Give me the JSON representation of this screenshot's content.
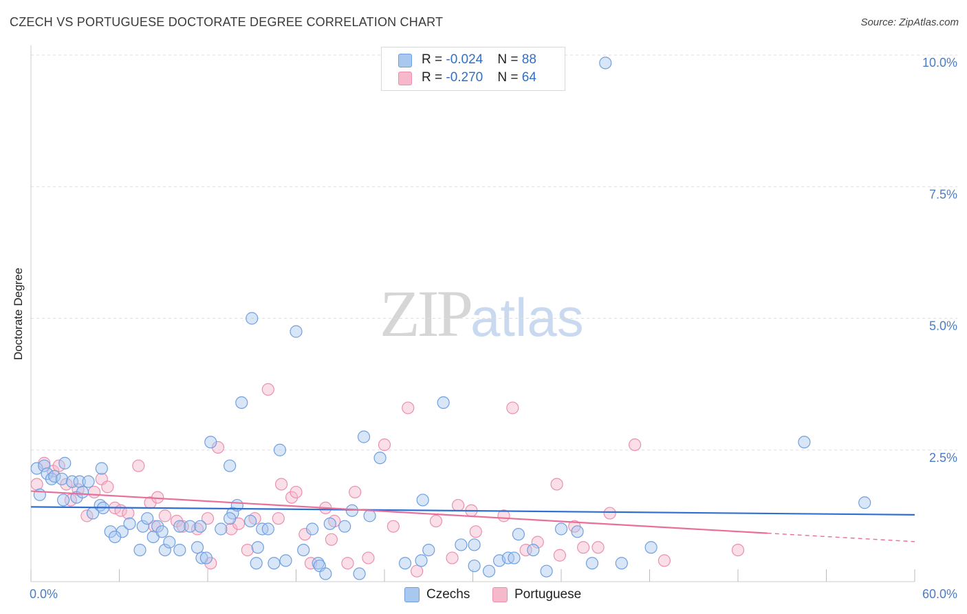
{
  "header": {
    "title": "CZECH VS PORTUGUESE DOCTORATE DEGREE CORRELATION CHART",
    "source": "Source: ZipAtlas.com"
  },
  "watermark": {
    "zip": "ZIP",
    "atlas": "atlas"
  },
  "legend": {
    "rows": [
      {
        "r_label": "R = ",
        "r_value": "-0.024",
        "n_label": "N = ",
        "n_value": "88",
        "color": "#a9c8f0"
      },
      {
        "r_label": "R = ",
        "r_value": "-0.270",
        "n_label": "N = ",
        "n_value": "64",
        "color": "#f6b8cb"
      }
    ]
  },
  "bottom_legend": {
    "czechs": "Czechs",
    "portuguese": "Portuguese"
  },
  "colors": {
    "blue_fill": "#a9c8f0",
    "blue_stroke": "#6f9fe0",
    "blue_line": "#2f6fd0",
    "pink_fill": "#f6b8cb",
    "pink_stroke": "#ec8fad",
    "pink_line": "#e86f9a",
    "grid": "#dddddd",
    "tick_text": "#4a7cc4"
  },
  "chart_data": {
    "type": "scatter",
    "title": "CZECH VS PORTUGUESE DOCTORATE DEGREE CORRELATION CHART",
    "xlabel": "",
    "ylabel": "Doctorate Degree",
    "xlim": [
      0,
      60
    ],
    "ylim": [
      0,
      10
    ],
    "x_tick_labels": [
      "0.0%",
      "60.0%"
    ],
    "y_ticks": [
      2.5,
      5.0,
      7.5,
      10.0
    ],
    "y_tick_labels": [
      "2.5%",
      "5.0%",
      "7.5%",
      "10.0%"
    ],
    "grid": true,
    "series": [
      {
        "name": "Czechs",
        "r": -0.024,
        "n": 88,
        "trend": {
          "x": [
            0,
            60
          ],
          "y": [
            1.42,
            1.27
          ],
          "extend_dashed_to": null
        },
        "points": [
          [
            0.4,
            2.15
          ],
          [
            0.6,
            1.65
          ],
          [
            0.9,
            2.2
          ],
          [
            1.1,
            2.05
          ],
          [
            1.4,
            1.95
          ],
          [
            1.6,
            2.0
          ],
          [
            2.1,
            1.95
          ],
          [
            2.3,
            2.25
          ],
          [
            2.2,
            1.55
          ],
          [
            2.8,
            1.9
          ],
          [
            3.3,
            1.9
          ],
          [
            3.1,
            1.6
          ],
          [
            3.9,
            1.9
          ],
          [
            3.5,
            1.7
          ],
          [
            4.8,
            2.15
          ],
          [
            4.2,
            1.3
          ],
          [
            4.7,
            1.45
          ],
          [
            4.9,
            1.4
          ],
          [
            5.4,
            0.95
          ],
          [
            6.2,
            0.95
          ],
          [
            5.7,
            0.85
          ],
          [
            6.7,
            1.1
          ],
          [
            7.4,
            0.6
          ],
          [
            7.6,
            1.05
          ],
          [
            7.9,
            1.2
          ],
          [
            8.3,
            0.85
          ],
          [
            8.6,
            1.05
          ],
          [
            8.9,
            0.95
          ],
          [
            9.1,
            0.6
          ],
          [
            9.4,
            0.75
          ],
          [
            10.1,
            1.05
          ],
          [
            10.1,
            0.6
          ],
          [
            10.8,
            1.05
          ],
          [
            11.3,
            0.65
          ],
          [
            11.6,
            0.45
          ],
          [
            11.9,
            0.45
          ],
          [
            11.5,
            1.05
          ],
          [
            12.2,
            2.65
          ],
          [
            12.9,
            1.0
          ],
          [
            13.5,
            2.2
          ],
          [
            13.7,
            1.3
          ],
          [
            14.0,
            1.45
          ],
          [
            13.5,
            1.2
          ],
          [
            14.3,
            3.4
          ],
          [
            14.9,
            1.15
          ],
          [
            15.0,
            5.0
          ],
          [
            15.4,
            0.65
          ],
          [
            15.3,
            0.35
          ],
          [
            15.7,
            1.0
          ],
          [
            16.1,
            1.0
          ],
          [
            16.5,
            0.35
          ],
          [
            16.9,
            2.5
          ],
          [
            17.3,
            0.4
          ],
          [
            18.0,
            4.75
          ],
          [
            18.5,
            0.6
          ],
          [
            19.1,
            1.0
          ],
          [
            19.5,
            0.35
          ],
          [
            19.6,
            0.3
          ],
          [
            20.3,
            1.1
          ],
          [
            20.0,
            0.15
          ],
          [
            21.3,
            1.05
          ],
          [
            21.8,
            1.35
          ],
          [
            22.3,
            0.15
          ],
          [
            22.6,
            2.75
          ],
          [
            23.0,
            1.25
          ],
          [
            23.7,
            2.35
          ],
          [
            25.4,
            0.35
          ],
          [
            26.5,
            0.4
          ],
          [
            26.6,
            1.55
          ],
          [
            27.0,
            0.6
          ],
          [
            28.0,
            3.4
          ],
          [
            29.2,
            0.7
          ],
          [
            30.1,
            0.7
          ],
          [
            30.1,
            0.3
          ],
          [
            31.1,
            0.2
          ],
          [
            31.8,
            0.4
          ],
          [
            32.4,
            0.45
          ],
          [
            32.8,
            0.45
          ],
          [
            33.1,
            0.9
          ],
          [
            34.1,
            0.6
          ],
          [
            35.0,
            0.2
          ],
          [
            36.0,
            1.0
          ],
          [
            37.1,
            0.95
          ],
          [
            38.1,
            0.35
          ],
          [
            39.0,
            9.85
          ],
          [
            40.1,
            0.35
          ],
          [
            42.1,
            0.65
          ],
          [
            52.5,
            2.65
          ],
          [
            56.6,
            1.5
          ]
        ]
      },
      {
        "name": "Portuguese",
        "r": -0.27,
        "n": 64,
        "trend": {
          "x": [
            0,
            50
          ],
          "y": [
            1.72,
            0.92
          ],
          "dashed_x": [
            50,
            60
          ],
          "dashed_y": [
            0.92,
            0.76
          ]
        },
        "points": [
          [
            0.4,
            1.85
          ],
          [
            0.9,
            2.25
          ],
          [
            1.5,
            2.1
          ],
          [
            1.9,
            2.2
          ],
          [
            2.4,
            1.85
          ],
          [
            2.7,
            1.55
          ],
          [
            3.2,
            1.75
          ],
          [
            3.8,
            1.25
          ],
          [
            4.3,
            1.7
          ],
          [
            4.8,
            1.95
          ],
          [
            5.2,
            1.8
          ],
          [
            5.7,
            1.4
          ],
          [
            6.1,
            1.35
          ],
          [
            6.6,
            1.3
          ],
          [
            7.3,
            2.2
          ],
          [
            8.1,
            1.5
          ],
          [
            8.6,
            1.6
          ],
          [
            8.4,
            1.05
          ],
          [
            9.1,
            1.25
          ],
          [
            9.9,
            1.15
          ],
          [
            10.3,
            1.05
          ],
          [
            11.3,
            1.0
          ],
          [
            12.0,
            1.2
          ],
          [
            12.2,
            0.35
          ],
          [
            12.7,
            2.55
          ],
          [
            13.6,
            1.0
          ],
          [
            14.1,
            1.1
          ],
          [
            14.7,
            0.6
          ],
          [
            15.2,
            1.2
          ],
          [
            16.1,
            3.65
          ],
          [
            16.8,
            1.2
          ],
          [
            17.0,
            1.85
          ],
          [
            17.7,
            1.6
          ],
          [
            18.0,
            1.7
          ],
          [
            18.6,
            0.9
          ],
          [
            19.0,
            0.35
          ],
          [
            20.0,
            1.4
          ],
          [
            20.6,
            1.15
          ],
          [
            20.4,
            0.8
          ],
          [
            21.5,
            0.35
          ],
          [
            22.0,
            1.7
          ],
          [
            22.9,
            0.45
          ],
          [
            24.0,
            2.6
          ],
          [
            24.6,
            1.05
          ],
          [
            25.6,
            3.3
          ],
          [
            26.2,
            0.2
          ],
          [
            27.5,
            1.15
          ],
          [
            28.6,
            0.45
          ],
          [
            29.0,
            1.45
          ],
          [
            29.9,
            1.35
          ],
          [
            30.2,
            0.95
          ],
          [
            32.1,
            1.25
          ],
          [
            32.7,
            3.3
          ],
          [
            33.6,
            0.6
          ],
          [
            34.4,
            0.75
          ],
          [
            35.7,
            1.85
          ],
          [
            35.9,
            0.5
          ],
          [
            36.9,
            1.05
          ],
          [
            37.5,
            0.65
          ],
          [
            38.5,
            0.65
          ],
          [
            39.3,
            1.3
          ],
          [
            41.0,
            2.6
          ],
          [
            43.0,
            0.4
          ],
          [
            48.0,
            0.6
          ]
        ]
      }
    ]
  }
}
